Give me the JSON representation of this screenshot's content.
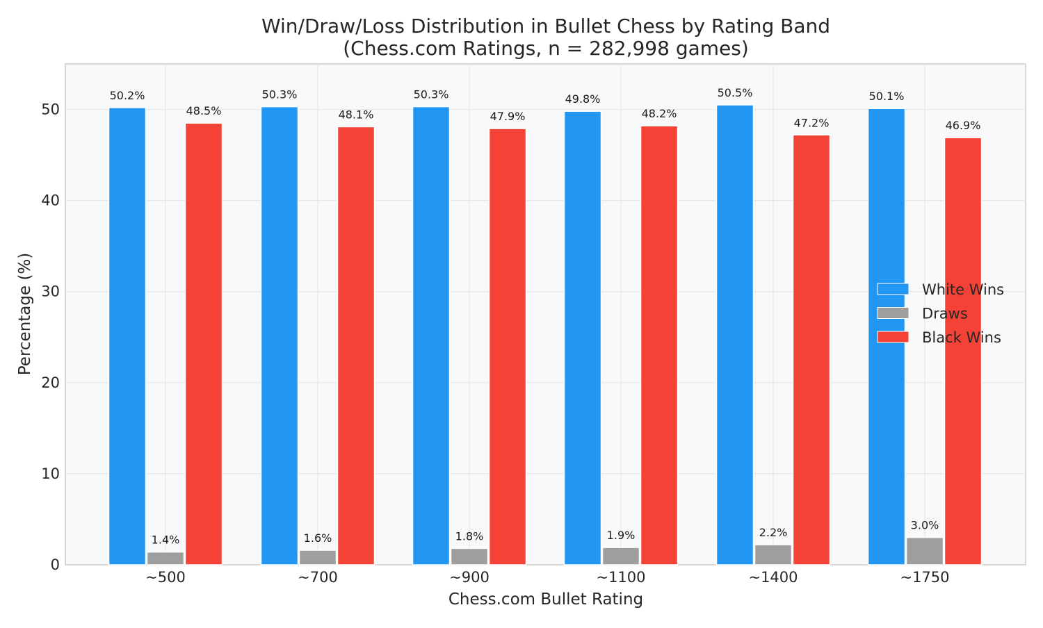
{
  "chart_data": {
    "type": "bar",
    "title": "Win/Draw/Loss Distribution in Bullet Chess by Rating Band",
    "subtitle": "(Chess.com Ratings, n = 282,998 games)",
    "xlabel": "Chess.com Bullet Rating",
    "ylabel": "Percentage (%)",
    "categories": [
      "~500",
      "~700",
      "~900",
      "~1100",
      "~1400",
      "~1750"
    ],
    "series": [
      {
        "name": "White Wins",
        "color": "#2196f3",
        "values": [
          50.2,
          50.3,
          50.3,
          49.8,
          50.5,
          50.1
        ],
        "labels": [
          "50.2%",
          "50.3%",
          "50.3%",
          "49.8%",
          "50.5%",
          "50.1%"
        ]
      },
      {
        "name": "Draws",
        "color": "#9e9e9e",
        "values": [
          1.4,
          1.6,
          1.8,
          1.9,
          2.2,
          3.0
        ],
        "labels": [
          "1.4%",
          "1.6%",
          "1.8%",
          "1.9%",
          "2.2%",
          "3.0%"
        ]
      },
      {
        "name": "Black Wins",
        "color": "#f44336",
        "values": [
          48.5,
          48.1,
          47.9,
          48.2,
          47.2,
          46.9
        ],
        "labels": [
          "48.5%",
          "48.1%",
          "47.9%",
          "48.2%",
          "47.2%",
          "46.9%"
        ]
      }
    ],
    "yticks": [
      0,
      10,
      20,
      30,
      40,
      50
    ],
    "ylim": [
      0,
      55
    ],
    "grid": true,
    "legend_position": "right"
  }
}
